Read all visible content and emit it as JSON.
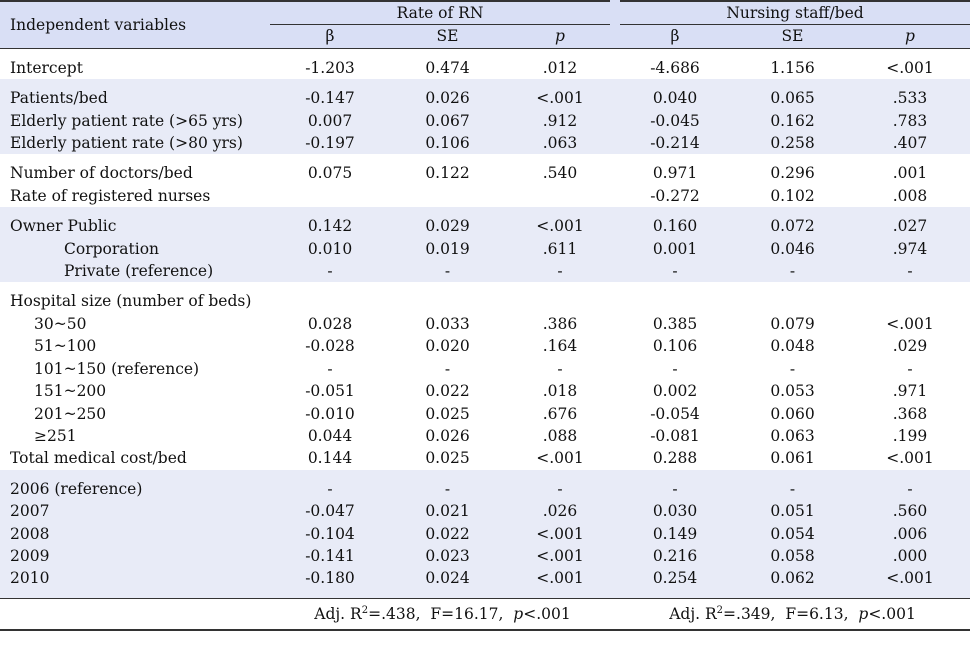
{
  "header": {
    "independent_variables": "Independent variables",
    "group_rn": "Rate of RN",
    "group_ns": "Nursing staff/bed",
    "beta": "β",
    "se": "SE",
    "p": "p"
  },
  "groups": [
    {
      "shade": false,
      "rows": [
        {
          "label": "Intercept",
          "indent": 0,
          "rn_b": "-1.203",
          "rn_se": "0.474",
          "rn_p": ".012",
          "ns_b": "-4.686",
          "ns_se": "1.156",
          "ns_p": "<.001"
        }
      ]
    },
    {
      "shade": true,
      "rows": [
        {
          "label": "Patients/bed",
          "indent": 0,
          "rn_b": "-0.147",
          "rn_se": "0.026",
          "rn_p": "<.001",
          "ns_b": "0.040",
          "ns_se": "0.065",
          "ns_p": ".533"
        },
        {
          "label": "Elderly patient rate (>65 yrs)",
          "indent": 0,
          "rn_b": "0.007",
          "rn_se": "0.067",
          "rn_p": ".912",
          "ns_b": "-0.045",
          "ns_se": "0.162",
          "ns_p": ".783"
        },
        {
          "label": "Elderly patient rate (>80 yrs)",
          "indent": 0,
          "rn_b": "-0.197",
          "rn_se": "0.106",
          "rn_p": ".063",
          "ns_b": "-0.214",
          "ns_se": "0.258",
          "ns_p": ".407"
        }
      ]
    },
    {
      "shade": false,
      "rows": [
        {
          "label": "Number of doctors/bed",
          "indent": 0,
          "rn_b": "0.075",
          "rn_se": "0.122",
          "rn_p": ".540",
          "ns_b": "0.971",
          "ns_se": "0.296",
          "ns_p": ".001"
        },
        {
          "label": "Rate of registered nurses",
          "indent": 0,
          "rn_b": "",
          "rn_se": "",
          "rn_p": "",
          "ns_b": "-0.272",
          "ns_se": "0.102",
          "ns_p": ".008"
        }
      ]
    },
    {
      "shade": true,
      "rows": [
        {
          "label": "Owner Public",
          "indent": 0,
          "rn_b": "0.142",
          "rn_se": "0.029",
          "rn_p": "<.001",
          "ns_b": "0.160",
          "ns_se": "0.072",
          "ns_p": ".027"
        },
        {
          "label": "Corporation",
          "indent": 2,
          "rn_b": "0.010",
          "rn_se": "0.019",
          "rn_p": ".611",
          "ns_b": "0.001",
          "ns_se": "0.046",
          "ns_p": ".974"
        },
        {
          "label": "Private (reference)",
          "indent": 2,
          "rn_b": "-",
          "rn_se": "-",
          "rn_p": "-",
          "ns_b": "-",
          "ns_se": "-",
          "ns_p": "-"
        }
      ]
    },
    {
      "shade": false,
      "rows": [
        {
          "label": "Hospital size (number of beds)",
          "indent": 0,
          "rn_b": "",
          "rn_se": "",
          "rn_p": "",
          "ns_b": "",
          "ns_se": "",
          "ns_p": ""
        },
        {
          "label": "30~50",
          "indent": 1,
          "rn_b": "0.028",
          "rn_se": "0.033",
          "rn_p": ".386",
          "ns_b": "0.385",
          "ns_se": "0.079",
          "ns_p": "<.001"
        },
        {
          "label": "51~100",
          "indent": 1,
          "rn_b": "-0.028",
          "rn_se": "0.020",
          "rn_p": ".164",
          "ns_b": "0.106",
          "ns_se": "0.048",
          "ns_p": ".029"
        },
        {
          "label": "101~150 (reference)",
          "indent": 1,
          "rn_b": "-",
          "rn_se": "-",
          "rn_p": "-",
          "ns_b": "-",
          "ns_se": "-",
          "ns_p": "-"
        },
        {
          "label": "151~200",
          "indent": 1,
          "rn_b": "-0.051",
          "rn_se": "0.022",
          "rn_p": ".018",
          "ns_b": "0.002",
          "ns_se": "0.053",
          "ns_p": ".971"
        },
        {
          "label": "201~250",
          "indent": 1,
          "rn_b": "-0.010",
          "rn_se": "0.025",
          "rn_p": ".676",
          "ns_b": "-0.054",
          "ns_se": "0.060",
          "ns_p": ".368"
        },
        {
          "label": "≥251",
          "indent": 1,
          "rn_b": "0.044",
          "rn_se": "0.026",
          "rn_p": ".088",
          "ns_b": "-0.081",
          "ns_se": "0.063",
          "ns_p": ".199"
        },
        {
          "label": "Total medical cost/bed",
          "indent": 0,
          "rn_b": "0.144",
          "rn_se": "0.025",
          "rn_p": "<.001",
          "ns_b": "0.288",
          "ns_se": "0.061",
          "ns_p": "<.001"
        }
      ]
    },
    {
      "shade": true,
      "rows": [
        {
          "label": "2006 (reference)",
          "indent": 0,
          "rn_b": "-",
          "rn_se": "-",
          "rn_p": "-",
          "ns_b": "-",
          "ns_se": "-",
          "ns_p": "-"
        },
        {
          "label": "2007",
          "indent": 0,
          "rn_b": "-0.047",
          "rn_se": "0.021",
          "rn_p": ".026",
          "ns_b": "0.030",
          "ns_se": "0.051",
          "ns_p": ".560"
        },
        {
          "label": "2008",
          "indent": 0,
          "rn_b": "-0.104",
          "rn_se": "0.022",
          "rn_p": "<.001",
          "ns_b": "0.149",
          "ns_se": "0.054",
          "ns_p": ".006"
        },
        {
          "label": "2009",
          "indent": 0,
          "rn_b": "-0.141",
          "rn_se": "0.023",
          "rn_p": "<.001",
          "ns_b": "0.216",
          "ns_se": "0.058",
          "ns_p": ".000"
        },
        {
          "label": "2010",
          "indent": 0,
          "rn_b": "-0.180",
          "rn_se": "0.024",
          "rn_p": "<.001",
          "ns_b": "0.254",
          "ns_se": "0.062",
          "ns_p": "<.001"
        }
      ]
    }
  ],
  "footer": {
    "rn": {
      "adj_prefix": "Adj. R",
      "adj_sup": "2",
      "adj_value": "=.438,",
      "f": "F=16.17,",
      "p_label": "p",
      "p_value": "<.001"
    },
    "ns": {
      "adj_prefix": "Adj. R",
      "adj_sup": "2",
      "adj_value": "=.349,",
      "f": "F=6.13,",
      "p_label": "p",
      "p_value": "<.001"
    }
  }
}
